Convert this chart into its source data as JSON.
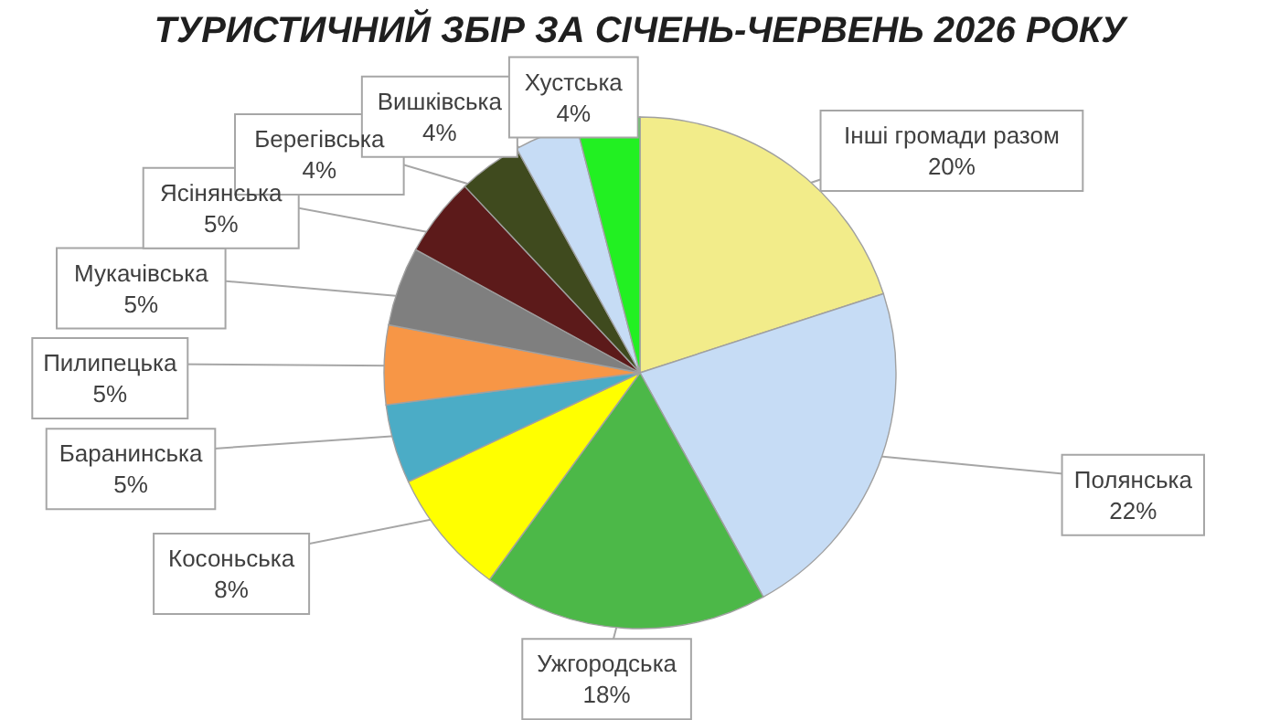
{
  "chart_data": {
    "type": "pie",
    "title": "ТУРИСТИЧНИЙ ЗБІР ЗА СІЧЕНЬ-ЧЕРВЕНЬ 2026 РОКУ",
    "categories": [
      "Інші громади разом",
      "Полянська",
      "Ужгородська",
      "Косоньська",
      "Баранинська",
      "Пилипецька",
      "Мукачівська",
      "Ясінянська",
      "Берегівська",
      "Вишківська",
      "Хустська"
    ],
    "values": [
      20,
      22,
      18,
      8,
      5,
      5,
      5,
      5,
      4,
      4,
      4
    ],
    "value_labels": [
      "20%",
      "22%",
      "18%",
      "8%",
      "5%",
      "5%",
      "5%",
      "5%",
      "4%",
      "4%",
      "4%"
    ],
    "colors": [
      "#f2ec8a",
      "#c6dcf5",
      "#4cb848",
      "#ffff00",
      "#4bacc6",
      "#f79646",
      "#7f7f7f",
      "#5c1a1a",
      "#3f4a1e",
      "#c6dcf5",
      "#22f022"
    ]
  }
}
